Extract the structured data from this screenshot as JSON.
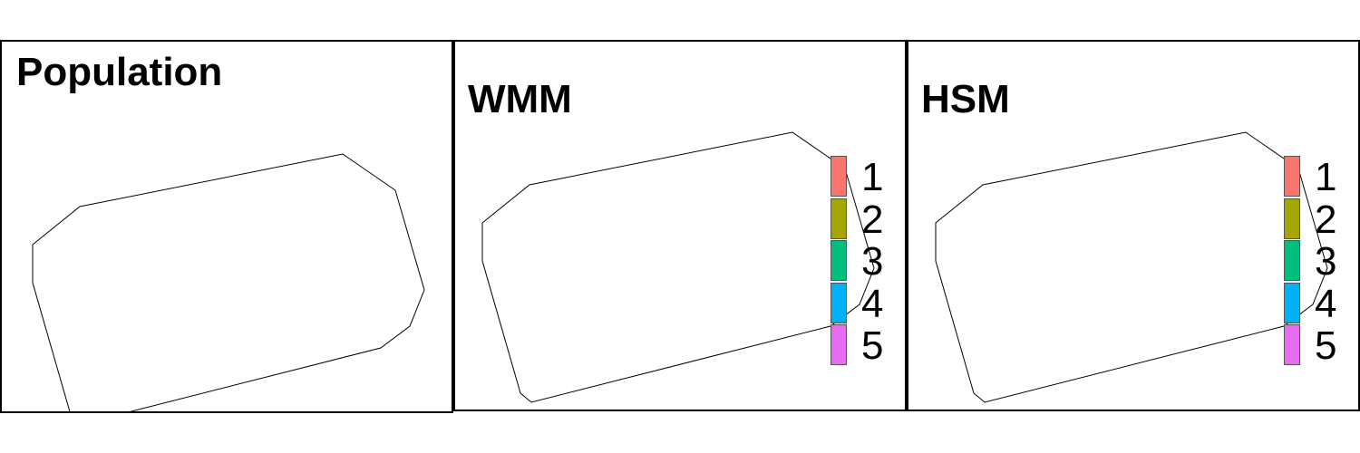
{
  "panels": [
    {
      "id": "pop",
      "title": "Population"
    },
    {
      "id": "wmm",
      "title": "WMM"
    },
    {
      "id": "hsm",
      "title": "HSM"
    }
  ],
  "legend": [
    {
      "label": "1",
      "color": "#F8766D"
    },
    {
      "label": "2",
      "color": "#A3A500"
    },
    {
      "label": "3",
      "color": "#00BF7D"
    },
    {
      "label": "4",
      "color": "#00B0F6"
    },
    {
      "label": "5",
      "color": "#E76BF3"
    }
  ],
  "palette": {
    "pop_shades": [
      "#f5f5f5",
      "#e6e6e6",
      "#d2d2d2",
      "#bdbdbd",
      "#a8a8a8",
      "#8a8a8a",
      "#5a5a5a",
      "#333333",
      "#111111"
    ],
    "border": "#000000"
  }
}
